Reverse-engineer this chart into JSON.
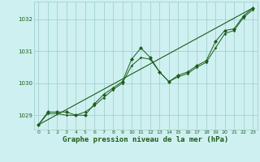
{
  "title": "Graphe pression niveau de la mer (hPa)",
  "background_color": "#cff0f0",
  "grid_color": "#99cccc",
  "line_color": "#1a5c1a",
  "marker_color": "#1a5c1a",
  "xlim": [
    -0.5,
    23.5
  ],
  "ylim": [
    1028.55,
    1032.55
  ],
  "yticks": [
    1029,
    1030,
    1031,
    1032
  ],
  "xticks": [
    0,
    1,
    2,
    3,
    4,
    5,
    6,
    7,
    8,
    9,
    10,
    11,
    12,
    13,
    14,
    15,
    16,
    17,
    18,
    19,
    20,
    21,
    22,
    23
  ],
  "series1_x": [
    0,
    1,
    2,
    3,
    4,
    5,
    6,
    7,
    8,
    9,
    10,
    11,
    12,
    13,
    14,
    15,
    16,
    17,
    18,
    19,
    20,
    21,
    22,
    23
  ],
  "series1_y": [
    1028.7,
    1029.1,
    1029.1,
    1029.1,
    1029.0,
    1029.0,
    1029.35,
    1029.65,
    1029.85,
    1030.05,
    1030.75,
    1031.1,
    1030.8,
    1030.35,
    1030.05,
    1030.25,
    1030.35,
    1030.55,
    1030.7,
    1031.3,
    1031.65,
    1031.7,
    1032.1,
    1032.35
  ],
  "series2_x": [
    0,
    1,
    2,
    3,
    4,
    5,
    6,
    7,
    8,
    9,
    10,
    11,
    12,
    13,
    14,
    15,
    16,
    17,
    18,
    19,
    20,
    21,
    22,
    23
  ],
  "series2_y": [
    1028.7,
    1029.05,
    1029.05,
    1029.0,
    1029.0,
    1029.1,
    1029.3,
    1029.55,
    1029.8,
    1030.0,
    1030.55,
    1030.8,
    1030.75,
    1030.35,
    1030.05,
    1030.2,
    1030.3,
    1030.5,
    1030.65,
    1031.1,
    1031.55,
    1031.65,
    1032.05,
    1032.3
  ],
  "series3_x": [
    0,
    23
  ],
  "series3_y": [
    1028.7,
    1032.35
  ],
  "title_fontsize": 6.5,
  "tick_fontsize": 5.0
}
